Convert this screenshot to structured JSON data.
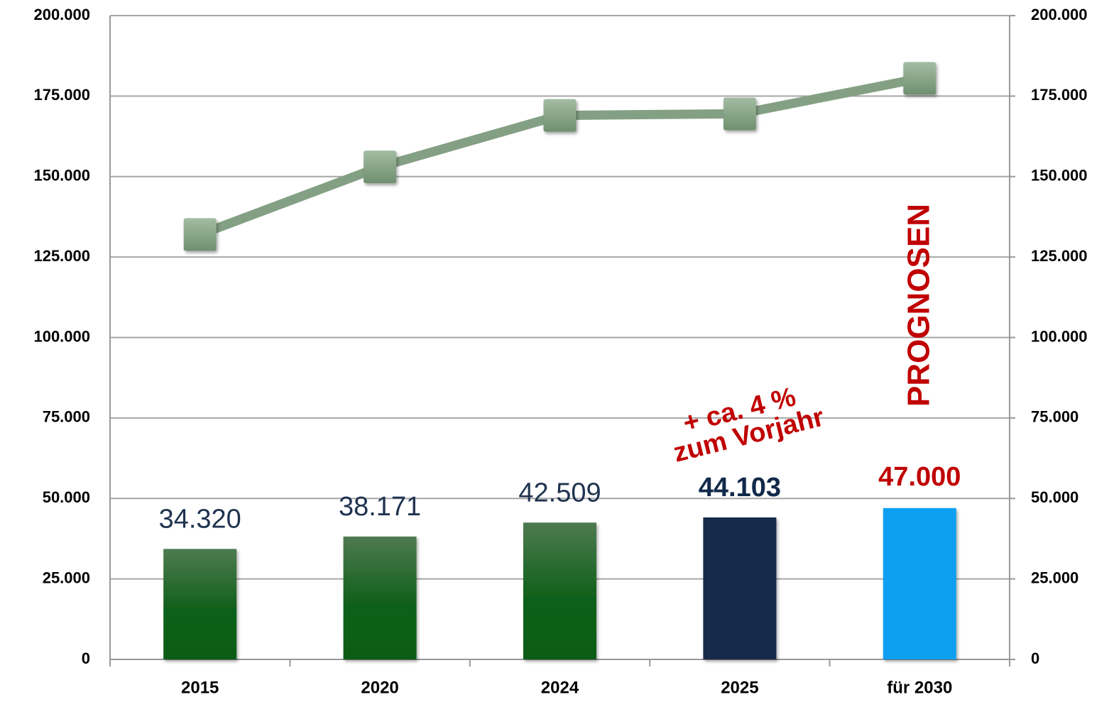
{
  "chart_data": {
    "type": "bar",
    "categories": [
      "2015",
      "2020",
      "2024",
      "2025",
      "für 2030"
    ],
    "series": [
      {
        "type": "bar",
        "values": [
          34320,
          38171,
          42509,
          44103,
          47000
        ],
        "value_labels": [
          "34.320",
          "38.171",
          "42.509",
          "44.103",
          "47.000"
        ],
        "colors": [
          "#1a6b22",
          "#1a6b22",
          "#1a6b22",
          "#12294a",
          "#0a9ff0"
        ],
        "label_colors": [
          "#1f3350",
          "#1f3350",
          "#1f3350",
          "#12294a",
          "#c00000"
        ]
      },
      {
        "type": "line",
        "color": "#84a084",
        "values": [
          132000,
          153000,
          169000,
          169500,
          180500
        ]
      }
    ],
    "ylim": [
      0,
      200000
    ],
    "yticks": [
      0,
      {
        "value": 25000,
        "label": "25.000"
      },
      {
        "value": 50000,
        "label": "50.000"
      },
      {
        "value": 75000,
        "label": "75.000"
      },
      {
        "value": 100000,
        "label": "100.000"
      },
      {
        "value": 125000,
        "label": "125.000"
      },
      {
        "value": 150000,
        "label": "150.000"
      },
      {
        "value": 175000,
        "label": "175.000"
      },
      {
        "value": 200000,
        "label": "200.000"
      }
    ],
    "y2lim": [
      0,
      200000
    ],
    "y2ticks": [
      0,
      {
        "value": 25000,
        "label": "25.000"
      },
      {
        "value": 50000,
        "label": "50.000"
      },
      {
        "value": 75000,
        "label": "75.000"
      },
      {
        "value": 100000,
        "label": "100.000"
      },
      {
        "value": 125000,
        "label": "125.000"
      },
      {
        "value": 150000,
        "label": "150.000"
      },
      {
        "value": 175000,
        "label": "175.000"
      },
      {
        "value": 200000,
        "label": "200.000"
      }
    ],
    "grid": true,
    "annotations": [
      "+ ca. 4 %",
      "zum Vorjahr",
      "PROGNOSEN"
    ]
  }
}
